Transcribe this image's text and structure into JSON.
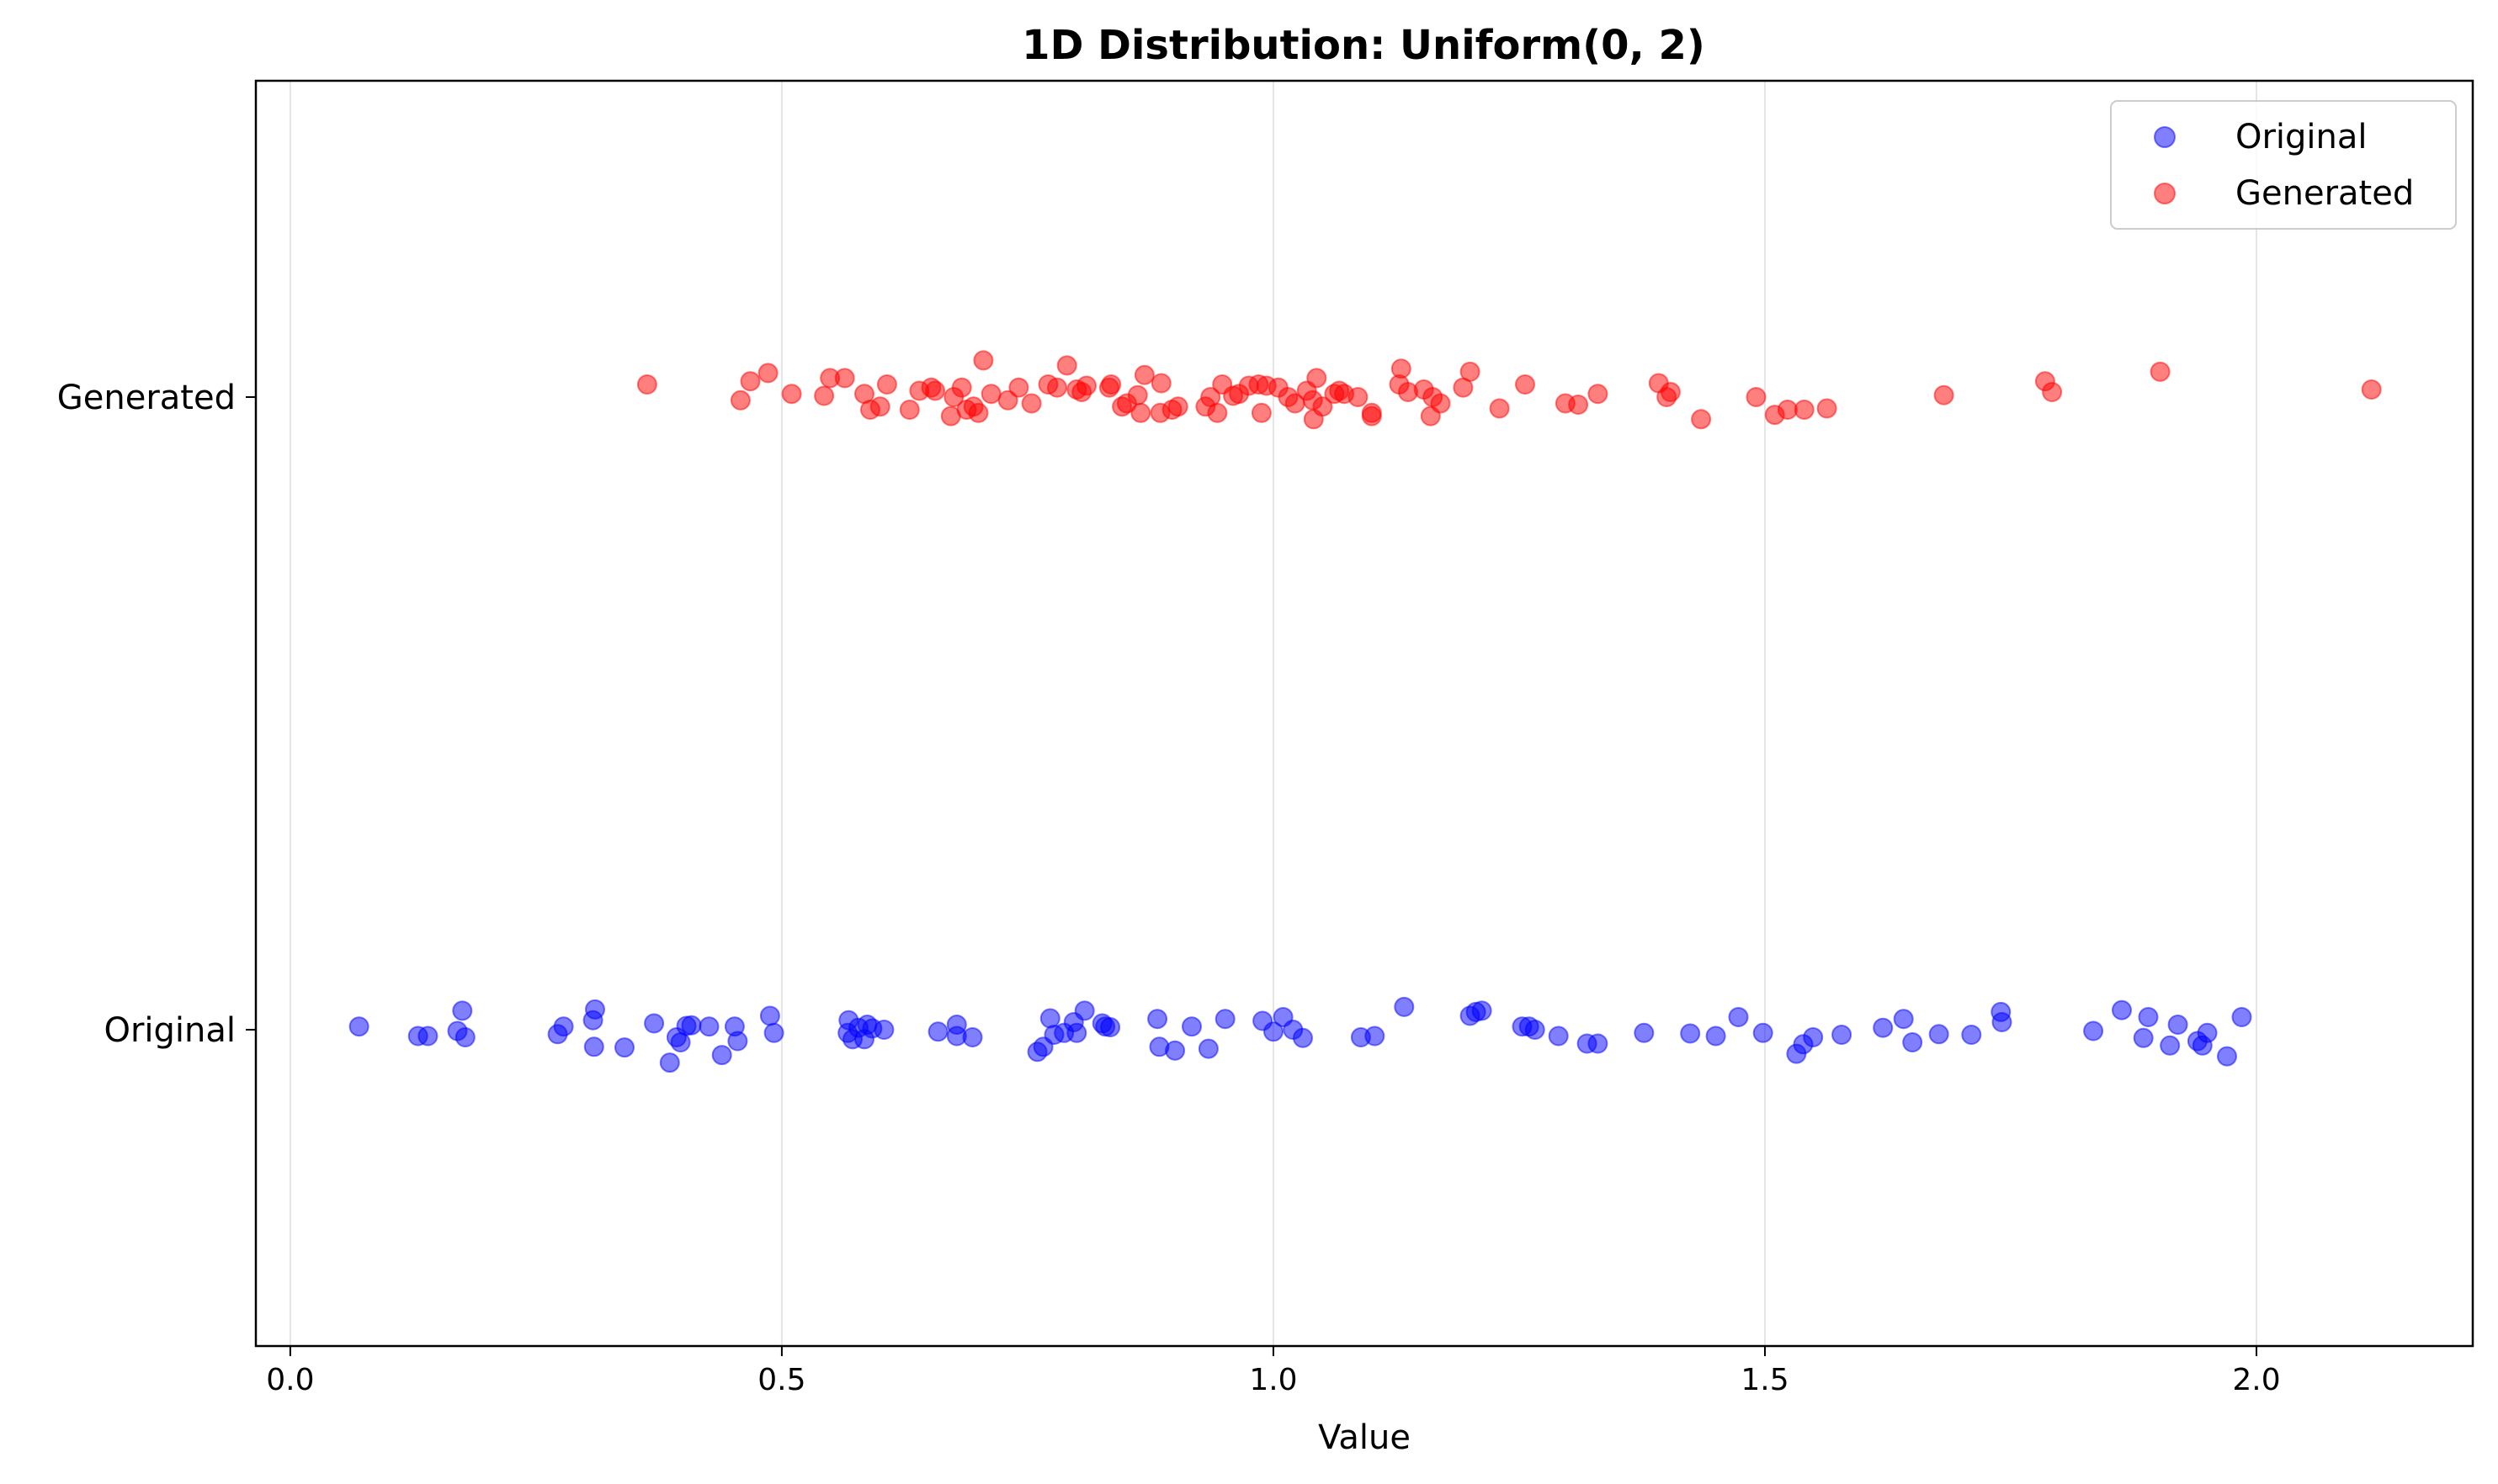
{
  "chart_data": {
    "type": "scatter",
    "title": "1D Distribution: Uniform(0, 2)",
    "xlabel": "Value",
    "ylabel": "",
    "xlim": [
      -0.035,
      2.22
    ],
    "ylim": [
      -0.5,
      1.5
    ],
    "xticks": [
      0.0,
      0.5,
      1.0,
      1.5,
      2.0
    ],
    "xtick_labels": [
      "0.0",
      "0.5",
      "1.0",
      "1.5",
      "2.0"
    ],
    "categories": [
      "Original",
      "Generated"
    ],
    "grid": "vertical",
    "legend_position": "top-right",
    "series": [
      {
        "name": "Original",
        "color": "#0000ff",
        "category_index": 0,
        "points": [
          [
            0.07,
            0.005
          ],
          [
            0.13,
            -0.01
          ],
          [
            0.14,
            -0.01
          ],
          [
            0.17,
            -0.002
          ],
          [
            0.175,
            0.03
          ],
          [
            0.178,
            -0.012
          ],
          [
            0.272,
            -0.007
          ],
          [
            0.278,
            0.005
          ],
          [
            0.308,
            0.015
          ],
          [
            0.31,
            0.032
          ],
          [
            0.309,
            -0.027
          ],
          [
            0.34,
            -0.028
          ],
          [
            0.37,
            0.01
          ],
          [
            0.386,
            -0.052
          ],
          [
            0.393,
            -0.012
          ],
          [
            0.397,
            -0.02
          ],
          [
            0.403,
            0.006
          ],
          [
            0.408,
            0.007
          ],
          [
            0.426,
            0.005
          ],
          [
            0.439,
            -0.04
          ],
          [
            0.452,
            0.005
          ],
          [
            0.455,
            -0.018
          ],
          [
            0.488,
            0.022
          ],
          [
            0.492,
            -0.005
          ],
          [
            0.567,
            -0.005
          ],
          [
            0.568,
            0.015
          ],
          [
            0.572,
            -0.015
          ],
          [
            0.578,
            0.003
          ],
          [
            0.584,
            -0.015
          ],
          [
            0.587,
            0.008
          ],
          [
            0.592,
            0.002
          ],
          [
            0.604,
            0.0
          ],
          [
            0.659,
            -0.003
          ],
          [
            0.678,
            -0.01
          ],
          [
            0.678,
            0.008
          ],
          [
            0.694,
            -0.012
          ],
          [
            0.76,
            -0.035
          ],
          [
            0.766,
            -0.027
          ],
          [
            0.773,
            0.018
          ],
          [
            0.777,
            -0.008
          ],
          [
            0.787,
            -0.005
          ],
          [
            0.797,
            0.012
          ],
          [
            0.8,
            -0.005
          ],
          [
            0.808,
            0.03
          ],
          [
            0.826,
            0.01
          ],
          [
            0.829,
            0.005
          ],
          [
            0.834,
            0.004
          ],
          [
            0.882,
            0.017
          ],
          [
            0.884,
            -0.027
          ],
          [
            0.9,
            -0.033
          ],
          [
            0.917,
            0.005
          ],
          [
            0.934,
            -0.03
          ],
          [
            0.951,
            0.017
          ],
          [
            0.989,
            0.014
          ],
          [
            1.0,
            -0.003
          ],
          [
            1.01,
            0.02
          ],
          [
            1.02,
            0.0
          ],
          [
            1.03,
            -0.013
          ],
          [
            1.089,
            -0.012
          ],
          [
            1.103,
            -0.01
          ],
          [
            1.133,
            0.036
          ],
          [
            1.2,
            0.022
          ],
          [
            1.206,
            0.028
          ],
          [
            1.212,
            0.03
          ],
          [
            1.253,
            0.005
          ],
          [
            1.26,
            0.005
          ],
          [
            1.266,
            0.0
          ],
          [
            1.29,
            -0.01
          ],
          [
            1.319,
            -0.022
          ],
          [
            1.33,
            -0.022
          ],
          [
            1.377,
            -0.005
          ],
          [
            1.424,
            -0.006
          ],
          [
            1.45,
            -0.01
          ],
          [
            1.473,
            0.02
          ],
          [
            1.498,
            -0.005
          ],
          [
            1.532,
            -0.038
          ],
          [
            1.539,
            -0.023
          ],
          [
            1.549,
            -0.012
          ],
          [
            1.578,
            -0.008
          ],
          [
            1.62,
            0.003
          ],
          [
            1.641,
            0.017
          ],
          [
            1.65,
            -0.02
          ],
          [
            1.677,
            -0.007
          ],
          [
            1.71,
            -0.008
          ],
          [
            1.74,
            0.028
          ],
          [
            1.741,
            0.012
          ],
          [
            1.834,
            -0.002
          ],
          [
            1.863,
            0.031
          ],
          [
            1.885,
            -0.013
          ],
          [
            1.89,
            0.02
          ],
          [
            1.912,
            -0.025
          ],
          [
            1.92,
            0.008
          ],
          [
            1.94,
            -0.018
          ],
          [
            1.945,
            -0.025
          ],
          [
            1.95,
            -0.005
          ],
          [
            1.97,
            -0.042
          ],
          [
            1.985,
            0.02
          ]
        ]
      },
      {
        "name": "Generated",
        "color": "#ff0000",
        "category_index": 1,
        "points": [
          [
            0.363,
            0.02
          ],
          [
            0.458,
            -0.005
          ],
          [
            0.468,
            0.025
          ],
          [
            0.486,
            0.038
          ],
          [
            0.51,
            0.005
          ],
          [
            0.543,
            0.002
          ],
          [
            0.549,
            0.03
          ],
          [
            0.564,
            0.03
          ],
          [
            0.584,
            0.005
          ],
          [
            0.59,
            -0.02
          ],
          [
            0.6,
            -0.015
          ],
          [
            0.607,
            0.02
          ],
          [
            0.63,
            -0.02
          ],
          [
            0.64,
            0.01
          ],
          [
            0.652,
            0.015
          ],
          [
            0.656,
            0.01
          ],
          [
            0.672,
            -0.03
          ],
          [
            0.675,
            0.0
          ],
          [
            0.683,
            0.015
          ],
          [
            0.688,
            -0.02
          ],
          [
            0.695,
            -0.015
          ],
          [
            0.7,
            -0.025
          ],
          [
            0.705,
            0.058
          ],
          [
            0.713,
            0.005
          ],
          [
            0.73,
            -0.005
          ],
          [
            0.741,
            0.015
          ],
          [
            0.754,
            -0.01
          ],
          [
            0.771,
            0.02
          ],
          [
            0.78,
            0.015
          ],
          [
            0.79,
            0.05
          ],
          [
            0.8,
            0.012
          ],
          [
            0.805,
            0.008
          ],
          [
            0.81,
            0.018
          ],
          [
            0.833,
            0.015
          ],
          [
            0.835,
            0.02
          ],
          [
            0.846,
            -0.015
          ],
          [
            0.851,
            -0.01
          ],
          [
            0.862,
            0.003
          ],
          [
            0.865,
            -0.025
          ],
          [
            0.869,
            0.035
          ],
          [
            0.885,
            -0.025
          ],
          [
            0.886,
            0.022
          ],
          [
            0.897,
            -0.02
          ],
          [
            0.903,
            -0.015
          ],
          [
            0.931,
            -0.015
          ],
          [
            0.936,
            0.0
          ],
          [
            0.943,
            -0.025
          ],
          [
            0.948,
            0.02
          ],
          [
            0.959,
            0.002
          ],
          [
            0.965,
            0.005
          ],
          [
            0.975,
            0.018
          ],
          [
            0.985,
            0.02
          ],
          [
            0.988,
            -0.025
          ],
          [
            0.993,
            0.018
          ],
          [
            1.005,
            0.015
          ],
          [
            1.015,
            0.0
          ],
          [
            1.022,
            -0.01
          ],
          [
            1.034,
            0.01
          ],
          [
            1.04,
            -0.005
          ],
          [
            1.041,
            -0.035
          ],
          [
            1.044,
            0.03
          ],
          [
            1.05,
            -0.015
          ],
          [
            1.062,
            0.005
          ],
          [
            1.067,
            0.01
          ],
          [
            1.072,
            0.005
          ],
          [
            1.086,
            0.0
          ],
          [
            1.1,
            -0.025
          ],
          [
            1.1,
            -0.03
          ],
          [
            1.128,
            0.02
          ],
          [
            1.13,
            0.045
          ],
          [
            1.137,
            0.008
          ],
          [
            1.153,
            0.012
          ],
          [
            1.16,
            -0.03
          ],
          [
            1.162,
            0.0
          ],
          [
            1.17,
            -0.01
          ],
          [
            1.193,
            0.015
          ],
          [
            1.2,
            0.04
          ],
          [
            1.23,
            -0.018
          ],
          [
            1.256,
            0.02
          ],
          [
            1.297,
            -0.01
          ],
          [
            1.31,
            -0.012
          ],
          [
            1.33,
            0.005
          ],
          [
            1.392,
            0.022
          ],
          [
            1.4,
            0.0
          ],
          [
            1.404,
            0.008
          ],
          [
            1.435,
            -0.035
          ],
          [
            1.491,
            0.0
          ],
          [
            1.51,
            -0.028
          ],
          [
            1.523,
            -0.02
          ],
          [
            1.54,
            -0.02
          ],
          [
            1.563,
            -0.018
          ],
          [
            1.682,
            0.003
          ],
          [
            1.785,
            0.025
          ],
          [
            1.792,
            0.008
          ],
          [
            1.902,
            0.04
          ],
          [
            2.117,
            0.012
          ]
        ]
      }
    ]
  }
}
